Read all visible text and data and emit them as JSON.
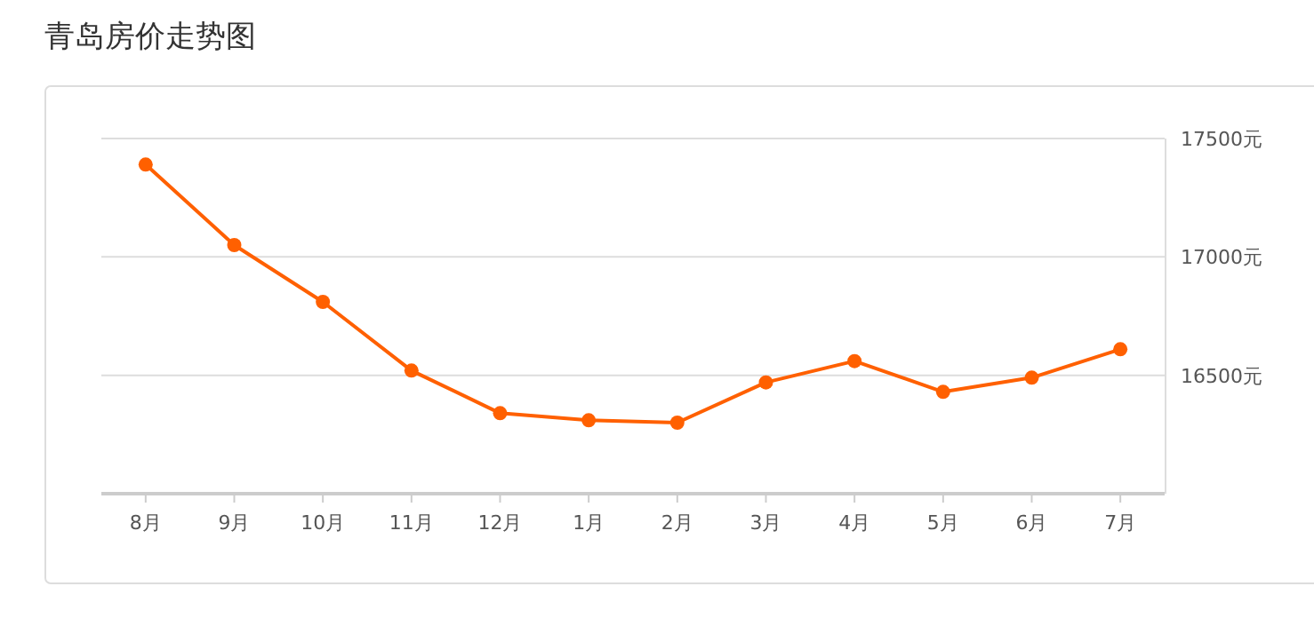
{
  "chart_data": {
    "type": "line",
    "title": "青岛房价走势图",
    "categories": [
      "8月",
      "9月",
      "10月",
      "11月",
      "12月",
      "1月",
      "2月",
      "3月",
      "4月",
      "5月",
      "6月",
      "7月"
    ],
    "series": [
      {
        "color": "#ff6000",
        "values": [
          17390,
          17050,
          16810,
          16520,
          16340,
          16310,
          16300,
          16470,
          16560,
          16430,
          16490,
          16610
        ]
      }
    ],
    "ylim": [
      16000,
      17500
    ],
    "yticks": [
      {
        "value": 16500,
        "label": "16500元"
      },
      {
        "value": 17000,
        "label": "17000元"
      },
      {
        "value": 17500,
        "label": "17500元"
      }
    ],
    "grid": "y",
    "marker": "circle",
    "line_style": "solid"
  }
}
